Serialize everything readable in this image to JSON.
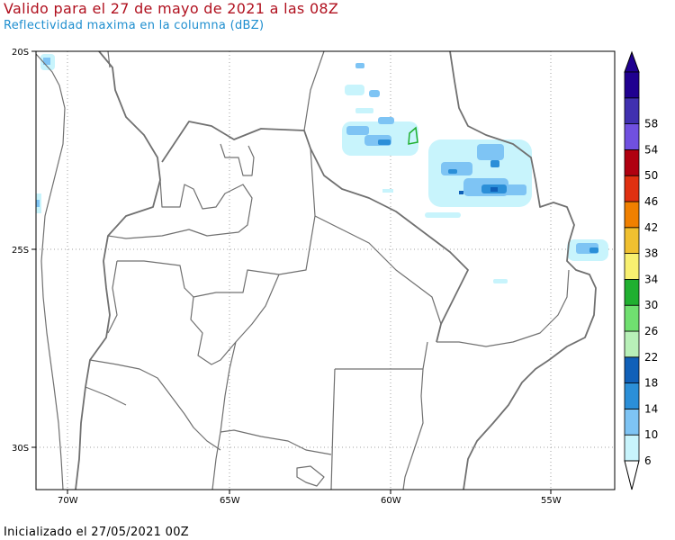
{
  "title": "Valido para el 27 de mayo de 2021 a las 08Z",
  "subtitle": "Reflectividad maxima en la columna (dBZ)",
  "footer": "Inicializado el 27/05/2021 00Z",
  "map": {
    "lat_labels": [
      "20S",
      "25S",
      "30S"
    ],
    "lon_labels": [
      "70W",
      "65W",
      "60W",
      "55W"
    ],
    "border_color": "#707070",
    "grid_color": "#a0a0a0"
  },
  "colorbar": {
    "levels": [
      "6",
      "10",
      "14",
      "18",
      "22",
      "26",
      "30",
      "34",
      "38",
      "42",
      "46",
      "50",
      "54",
      "58"
    ],
    "colors": [
      "#c8f4fc",
      "#7ec4f4",
      "#2b8fd8",
      "#1060b8",
      "#b8f0b8",
      "#70e070",
      "#20b030",
      "#f8f070",
      "#f0c030",
      "#f08000",
      "#e03010",
      "#b00010",
      "#7050e0",
      "#4030b0",
      "#200090"
    ]
  }
}
